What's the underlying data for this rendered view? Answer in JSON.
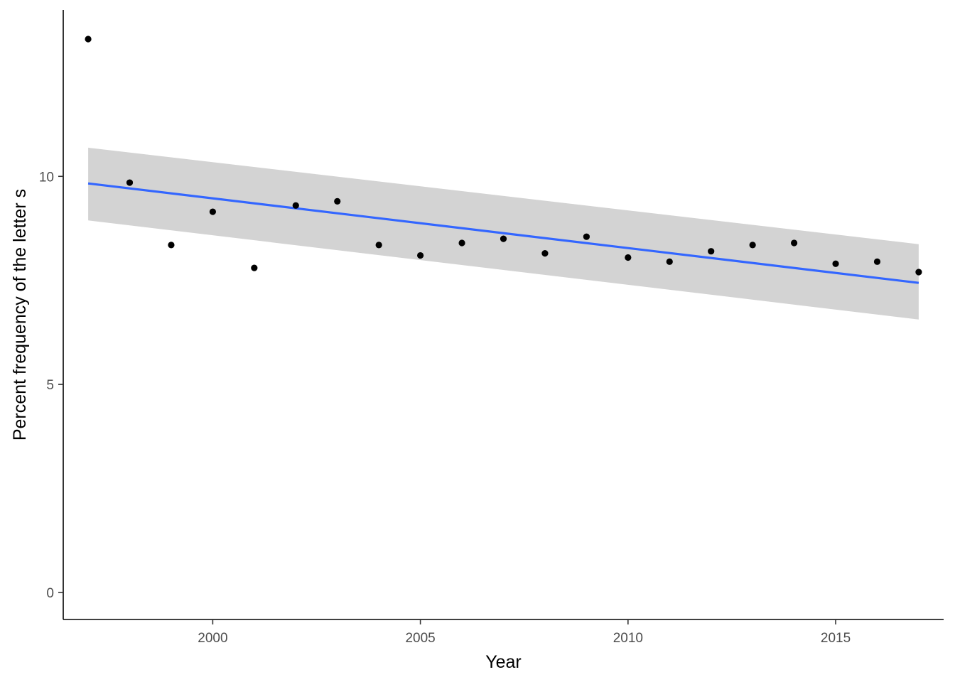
{
  "chart_data": {
    "type": "scatter",
    "title": "",
    "xlabel": "Year",
    "ylabel": "Percent frequency of the letter s",
    "x": [
      1997,
      1998,
      1999,
      2000,
      2001,
      2002,
      2003,
      2004,
      2005,
      2006,
      2007,
      2008,
      2009,
      2010,
      2011,
      2012,
      2013,
      2014,
      2015,
      2016,
      2017
    ],
    "y": [
      13.3,
      9.85,
      8.35,
      9.15,
      7.8,
      9.3,
      9.4,
      8.35,
      8.1,
      8.4,
      8.5,
      8.15,
      8.55,
      8.05,
      7.95,
      8.2,
      8.35,
      8.4,
      7.9,
      7.95,
      7.7
    ],
    "trend": {
      "method": "linear",
      "x": [
        1997,
        2017
      ],
      "y": [
        9.83,
        7.44
      ],
      "ci_lower": [
        8.94,
        6.56
      ],
      "ci_upper": [
        10.69,
        8.37
      ]
    },
    "xlim": [
      1996.4,
      2017.6
    ],
    "ylim": [
      -0.65,
      14.0
    ],
    "x_ticks": [
      2000,
      2005,
      2010,
      2015
    ],
    "y_ticks": [
      0,
      5,
      10
    ],
    "grid": false,
    "legend": "none",
    "colors": {
      "points": "#000000",
      "trend_line": "#3366ff",
      "ci_band": "#d3d3d3",
      "axis": "#000000",
      "tick_label": "#4d4d4d"
    }
  }
}
